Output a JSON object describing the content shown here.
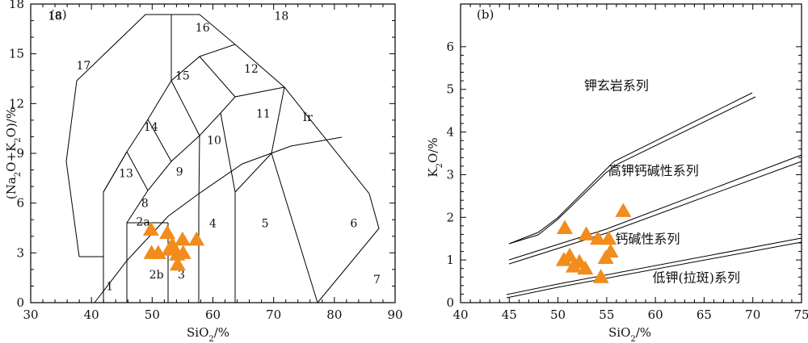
{
  "chart_data": [
    {
      "type": "scatter",
      "panel_label": "(a)",
      "xlabel_parts": [
        "SiO",
        "2",
        "/%"
      ],
      "ylabel_parts": [
        "(Na",
        "2",
        "O+K",
        "2",
        "O)/%"
      ],
      "xlim": [
        30,
        90
      ],
      "ylim": [
        0,
        18
      ],
      "xticks": [
        30,
        40,
        50,
        60,
        70,
        80,
        90
      ],
      "yticks": [
        0,
        3,
        6,
        9,
        12,
        15,
        18
      ],
      "marker": "triangle",
      "marker_color": "#f28c1c",
      "fields": [
        {
          "name": "1",
          "x": 43.0,
          "y": 1.0
        },
        {
          "name": "2a",
          "x": 48.5,
          "y": 4.9
        },
        {
          "name": "2b",
          "x": 50.7,
          "y": 1.7
        },
        {
          "name": "3",
          "x": 54.8,
          "y": 1.7
        },
        {
          "name": "4",
          "x": 60.0,
          "y": 4.8
        },
        {
          "name": "5",
          "x": 68.6,
          "y": 4.8
        },
        {
          "name": "6",
          "x": 83.2,
          "y": 4.8
        },
        {
          "name": "7",
          "x": 87.0,
          "y": 1.4
        },
        {
          "name": "8",
          "x": 48.8,
          "y": 6.0
        },
        {
          "name": "9",
          "x": 54.5,
          "y": 7.9
        },
        {
          "name": "10",
          "x": 60.2,
          "y": 9.8
        },
        {
          "name": "11",
          "x": 68.3,
          "y": 11.4
        },
        {
          "name": "12",
          "x": 66.3,
          "y": 14.1
        },
        {
          "name": "13",
          "x": 45.7,
          "y": 7.8
        },
        {
          "name": "14",
          "x": 49.8,
          "y": 10.6
        },
        {
          "name": "15",
          "x": 55.0,
          "y": 13.7
        },
        {
          "name": "16",
          "x": 58.3,
          "y": 16.6
        },
        {
          "name": "17",
          "x": 38.7,
          "y": 14.3
        },
        {
          "name": "18",
          "x": 34.0,
          "y": 17.3
        },
        {
          "name": "18",
          "x": 71.3,
          "y": 17.3
        },
        {
          "name": "Ir",
          "x": 75.6,
          "y": 11.2
        }
      ],
      "points": [
        {
          "x": 49.8,
          "y": 4.4
        },
        {
          "x": 52.5,
          "y": 4.2
        },
        {
          "x": 53.3,
          "y": 3.5
        },
        {
          "x": 55.0,
          "y": 3.8
        },
        {
          "x": 57.3,
          "y": 3.8
        },
        {
          "x": 49.9,
          "y": 3.0
        },
        {
          "x": 51.0,
          "y": 3.0
        },
        {
          "x": 52.8,
          "y": 3.2
        },
        {
          "x": 54.1,
          "y": 2.9
        },
        {
          "x": 55.1,
          "y": 3.0
        },
        {
          "x": 54.2,
          "y": 2.3
        }
      ]
    },
    {
      "type": "scatter",
      "panel_label": "(b)",
      "xlabel_parts": [
        "SiO",
        "2",
        "/%"
      ],
      "ylabel_parts": [
        "K",
        "2",
        "O/%"
      ],
      "xlim": [
        40,
        75
      ],
      "ylim": [
        0,
        7
      ],
      "xticks": [
        40,
        45,
        50,
        55,
        60,
        65,
        70,
        75
      ],
      "yticks": [
        0,
        1,
        2,
        3,
        4,
        5,
        6
      ],
      "marker": "triangle",
      "marker_color": "#f28c1c",
      "series_labels": [
        {
          "name": "钾玄岩系列",
          "x": 56.0,
          "y": 5.1
        },
        {
          "name": "高钾钙碱性系列",
          "x": 59.8,
          "y": 3.1
        },
        {
          "name": "钙碱性系列",
          "x": 59.2,
          "y": 1.5
        },
        {
          "name": "低钾(拉斑)系列",
          "x": 64.2,
          "y": 0.6
        }
      ],
      "points": [
        {
          "x": 50.7,
          "y": 1.75
        },
        {
          "x": 52.9,
          "y": 1.6
        },
        {
          "x": 54.1,
          "y": 1.5
        },
        {
          "x": 55.2,
          "y": 1.5
        },
        {
          "x": 56.7,
          "y": 2.15
        },
        {
          "x": 50.6,
          "y": 1.0
        },
        {
          "x": 51.2,
          "y": 1.1
        },
        {
          "x": 51.6,
          "y": 0.85
        },
        {
          "x": 52.2,
          "y": 0.95
        },
        {
          "x": 52.8,
          "y": 0.8
        },
        {
          "x": 54.9,
          "y": 1.05
        },
        {
          "x": 55.4,
          "y": 1.2
        },
        {
          "x": 54.4,
          "y": 0.6
        }
      ]
    }
  ]
}
